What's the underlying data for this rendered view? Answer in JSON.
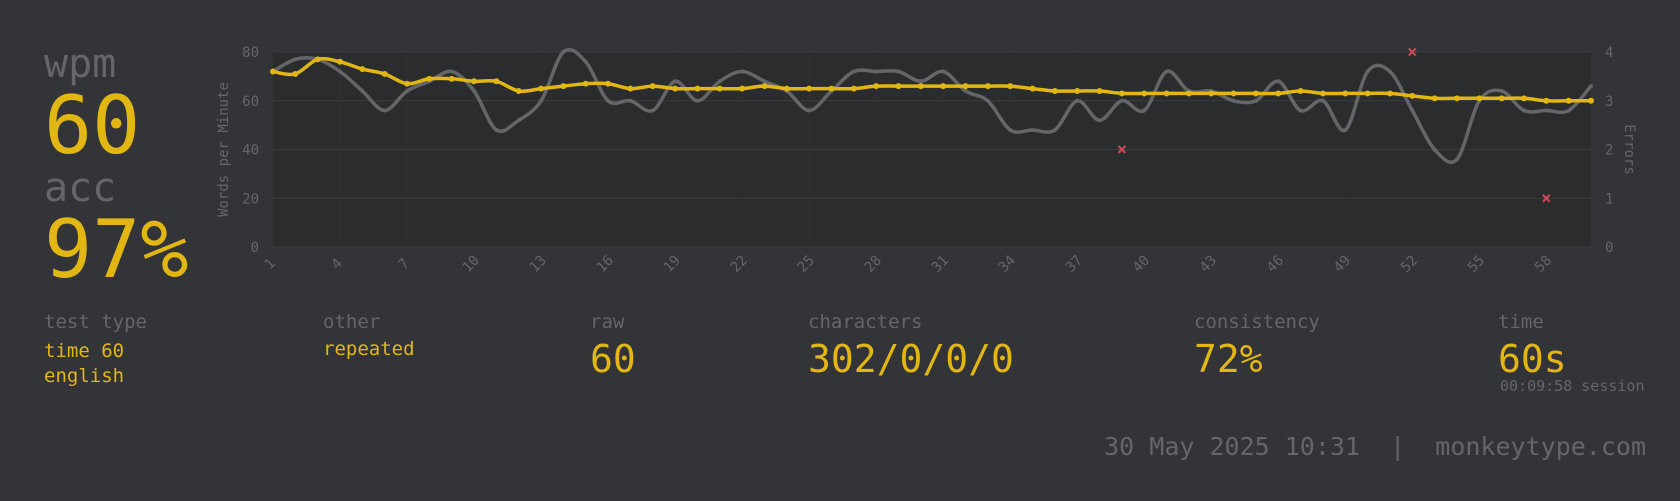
{
  "result": {
    "wpm_label": "wpm",
    "wpm_value": "60",
    "acc_label": "acc",
    "acc_value": "97%"
  },
  "stats": {
    "test_type": {
      "label": "test type",
      "values": [
        "time 60",
        "english"
      ]
    },
    "other": {
      "label": "other",
      "value": "repeated"
    },
    "raw": {
      "label": "raw",
      "value": "60"
    },
    "characters": {
      "label": "characters",
      "value": "302/0/0/0"
    },
    "consistency": {
      "label": "consistency",
      "value": "72%"
    },
    "time": {
      "label": "time",
      "value": "60s",
      "session": "00:09:58 session"
    }
  },
  "footer": {
    "date": "30 May 2025 10:31",
    "separator": "|",
    "site": "monkeytype.com"
  },
  "colors": {
    "background": "#323437",
    "main": "#e2b714",
    "sub": "#646669",
    "error": "#ca4754"
  },
  "chart_data": {
    "type": "line",
    "ylabel": "Words per Minute",
    "y2label": "Errors",
    "ylim": [
      0,
      80
    ],
    "y2lim": [
      0,
      4
    ],
    "yticks": [
      0,
      20,
      40,
      60,
      80
    ],
    "y2ticks": [
      0,
      1,
      2,
      3,
      4
    ],
    "xlim": [
      1,
      60
    ],
    "xticks": [
      1,
      4,
      7,
      10,
      13,
      16,
      19,
      22,
      25,
      28,
      31,
      34,
      37,
      40,
      43,
      46,
      49,
      52,
      55,
      58
    ],
    "x": [
      1,
      2,
      3,
      4,
      5,
      6,
      7,
      8,
      9,
      10,
      11,
      12,
      13,
      14,
      15,
      16,
      17,
      18,
      19,
      20,
      21,
      22,
      23,
      24,
      25,
      26,
      27,
      28,
      29,
      30,
      31,
      32,
      33,
      34,
      35,
      36,
      37,
      38,
      39,
      40,
      41,
      42,
      43,
      44,
      45,
      46,
      47,
      48,
      49,
      50,
      51,
      52,
      53,
      54,
      55,
      56,
      57,
      58,
      59,
      60
    ],
    "series": [
      {
        "role": "wpm",
        "values": [
          72,
          71,
          77,
          76,
          73,
          71,
          67,
          69,
          69,
          68,
          68,
          64,
          65,
          66,
          67,
          67,
          65,
          66,
          65,
          65,
          65,
          65,
          66,
          65,
          65,
          65,
          65,
          66,
          66,
          66,
          66,
          66,
          66,
          66,
          65,
          64,
          64,
          64,
          63,
          63,
          63,
          63,
          63,
          63,
          63,
          63,
          64,
          63,
          63,
          63,
          63,
          62,
          61,
          61,
          61,
          61,
          61,
          60,
          60,
          60
        ]
      },
      {
        "role": "raw",
        "values": [
          72,
          77,
          77,
          72,
          64,
          56,
          64,
          68,
          72,
          64,
          48,
          52,
          60,
          80,
          76,
          60,
          60,
          56,
          68,
          60,
          68,
          72,
          68,
          64,
          56,
          64,
          72,
          72,
          72,
          68,
          72,
          64,
          60,
          48,
          48,
          48,
          60,
          52,
          60,
          56,
          72,
          64,
          64,
          60,
          60,
          68,
          56,
          60,
          48,
          72,
          72,
          56,
          40,
          36,
          60,
          64,
          56,
          56,
          56,
          66
        ]
      },
      {
        "role": "errors",
        "points": [
          {
            "x": 39,
            "y": 2
          },
          {
            "x": 52,
            "y": 4
          },
          {
            "x": 58,
            "y": 1
          }
        ]
      }
    ]
  }
}
